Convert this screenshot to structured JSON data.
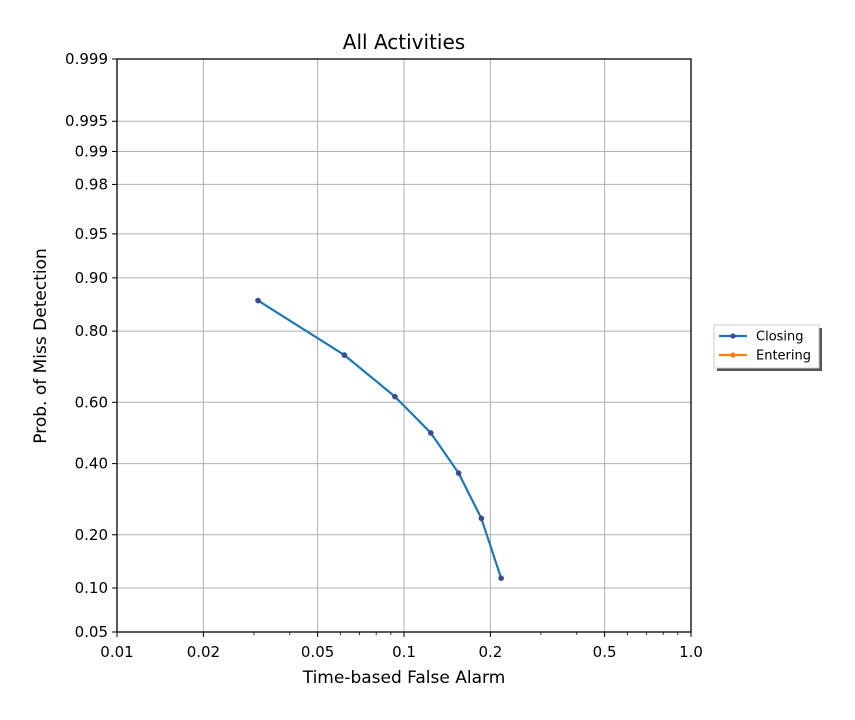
{
  "chart_data": {
    "type": "line",
    "title": "All Activities",
    "xlabel": "Time-based False Alarm",
    "ylabel": "Prob. of Miss Detection",
    "xscale": "log",
    "yscale": "normal-deviate",
    "xlim": [
      0.01,
      1.0
    ],
    "ylim": [
      0.05,
      0.999
    ],
    "xticks": [
      0.01,
      0.02,
      0.05,
      0.1,
      0.2,
      0.5,
      1.0
    ],
    "xtick_labels": [
      "0.01",
      "0.02",
      "0.05",
      "0.1",
      "0.2",
      "0.5",
      "1.0"
    ],
    "yticks": [
      0.05,
      0.1,
      0.2,
      0.4,
      0.6,
      0.8,
      0.9,
      0.95,
      0.98,
      0.99,
      0.995,
      0.999
    ],
    "ytick_labels": [
      "0.05",
      "0.10",
      "0.20",
      "0.40",
      "0.60",
      "0.80",
      "0.90",
      "0.95",
      "0.98",
      "0.99",
      "0.995",
      "0.999"
    ],
    "grid": true,
    "legend_position": "outside-right",
    "series": [
      {
        "name": "Closing",
        "color": "#1f77b4",
        "marker_color": "#3b4c8c",
        "x": [
          0.031,
          0.062,
          0.093,
          0.124,
          0.155,
          0.186,
          0.218
        ],
        "y": [
          0.863,
          0.74,
          0.618,
          0.5,
          0.37,
          0.24,
          0.115
        ]
      },
      {
        "name": "Entering",
        "color": "#ff7f0e",
        "marker_color": "#ff7f0e",
        "x": [],
        "y": []
      }
    ]
  }
}
